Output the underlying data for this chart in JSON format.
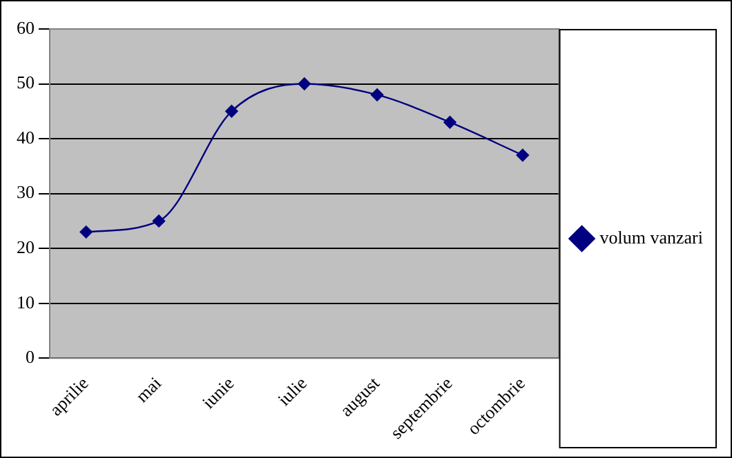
{
  "chart_data": {
    "type": "line",
    "categories": [
      "aprilie",
      "mai",
      "iunie",
      "iulie",
      "august",
      "septembrie",
      "octombrie"
    ],
    "series": [
      {
        "name": "volum vanzari",
        "color": "#000080",
        "values": [
          23,
          25,
          45,
          50,
          48,
          43,
          37
        ]
      }
    ],
    "ylim": [
      0,
      60
    ],
    "yticks": [
      0,
      10,
      20,
      30,
      40,
      50,
      60
    ],
    "grid": "y",
    "legend": "right",
    "marker": "diamond",
    "line_style": "solid"
  }
}
